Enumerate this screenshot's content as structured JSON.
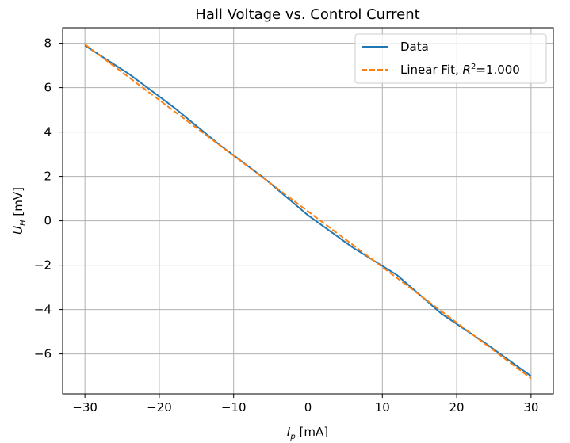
{
  "chart_data": {
    "type": "line",
    "title": "Hall Voltage vs. Control Current",
    "xlabel": "I_p [mA]",
    "ylabel": "U_H [mV]",
    "xlim": [
      -33,
      33
    ],
    "ylim": [
      -7.8,
      8.7
    ],
    "xticks": [
      -30,
      -20,
      -10,
      0,
      10,
      20,
      30
    ],
    "yticks": [
      -6,
      -4,
      -2,
      0,
      2,
      4,
      6,
      8
    ],
    "xtick_labels": [
      "−30",
      "−20",
      "−10",
      "0",
      "10",
      "20",
      "30"
    ],
    "ytick_labels": [
      "−6",
      "−4",
      "−2",
      "0",
      "2",
      "4",
      "6",
      "8"
    ],
    "grid": true,
    "legend_position": "top-right",
    "series": [
      {
        "name": "Data",
        "style": "solid",
        "color": "#1f77b4",
        "x": [
          -30,
          -24,
          -18,
          -12,
          -6,
          0,
          6,
          12,
          18,
          24,
          30
        ],
        "y": [
          7.9,
          6.6,
          5.1,
          3.45,
          1.95,
          0.25,
          -1.2,
          -2.45,
          -4.2,
          -5.55,
          -7.0
        ]
      },
      {
        "name": "Linear Fit, R²=1.000",
        "legend_prefix": "Linear Fit, ",
        "legend_var": "R",
        "legend_sup": "2",
        "legend_suffix": "=1.000",
        "style": "dashed",
        "color": "#ff7f0e",
        "x": [
          -30,
          30
        ],
        "y": [
          7.95,
          -7.1
        ]
      }
    ]
  }
}
